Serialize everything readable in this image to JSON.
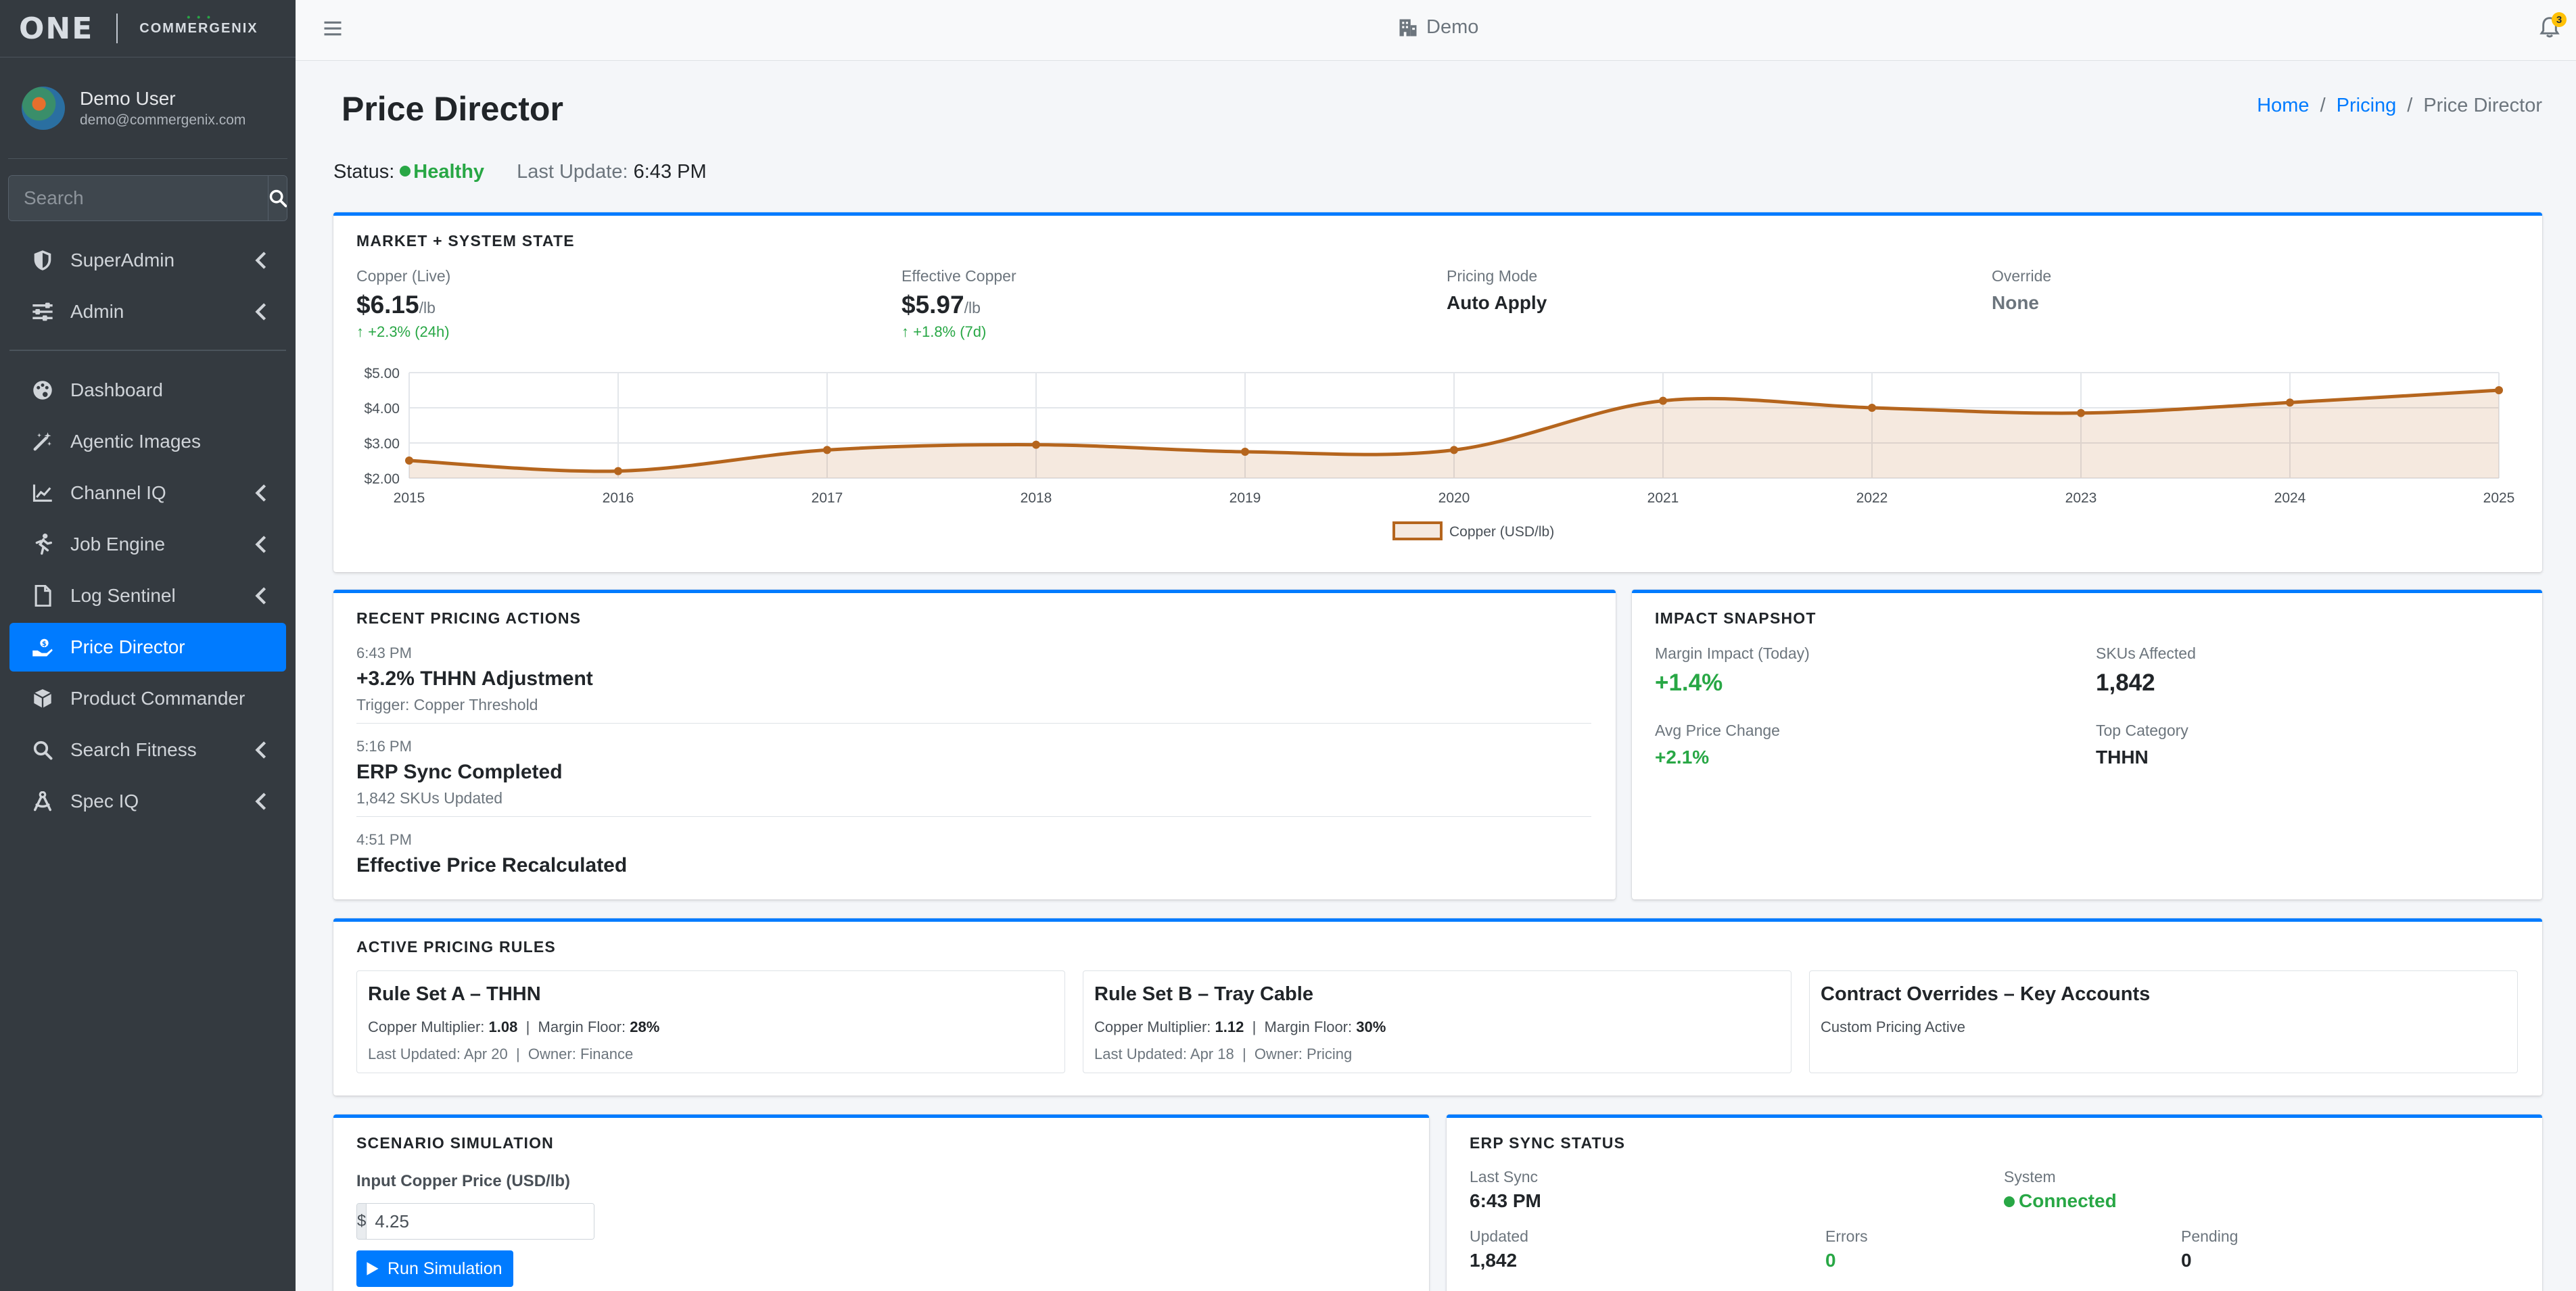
{
  "brand": {
    "logo_text": "ONE",
    "company": "COMMERGENIX"
  },
  "user": {
    "name": "Demo User",
    "email": "demo@commergenix.com"
  },
  "sidebar": {
    "search_placeholder": "Search",
    "items_top": [
      {
        "label": "SuperAdmin",
        "icon": "shield-icon",
        "chevron": true
      },
      {
        "label": "Admin",
        "icon": "sliders-icon",
        "chevron": true
      }
    ],
    "items": [
      {
        "label": "Dashboard",
        "icon": "palette-icon",
        "chevron": false
      },
      {
        "label": "Agentic Images",
        "icon": "magic-wand-icon",
        "chevron": false
      },
      {
        "label": "Channel IQ",
        "icon": "line-chart-icon",
        "chevron": true
      },
      {
        "label": "Job Engine",
        "icon": "runner-icon",
        "chevron": true
      },
      {
        "label": "Log Sentinel",
        "icon": "file-icon",
        "chevron": true
      },
      {
        "label": "Price Director",
        "icon": "hand-holding-dollar-icon",
        "chevron": false,
        "active": true
      },
      {
        "label": "Product Commander",
        "icon": "cube-icon",
        "chevron": false
      },
      {
        "label": "Search Fitness",
        "icon": "search-icon",
        "chevron": true
      },
      {
        "label": "Spec IQ",
        "icon": "drafting-compass-icon",
        "chevron": true
      }
    ]
  },
  "topbar": {
    "workspace": "Demo",
    "notifications": "3"
  },
  "page": {
    "title": "Price Director",
    "breadcrumb": [
      "Home",
      "Pricing",
      "Price Director"
    ],
    "status_label": "Status:",
    "status_value": "Healthy",
    "last_update_label": "Last Update:",
    "last_update_value": "6:43 PM"
  },
  "market": {
    "title": "MARKET + SYSTEM STATE",
    "copper_live_label": "Copper (Live)",
    "copper_live_value": "$6.15",
    "copper_live_unit": "/lb",
    "copper_live_change": "+2.3% (24h)",
    "effective_label": "Effective Copper",
    "effective_value": "$5.97",
    "effective_unit": "/lb",
    "effective_change": "+1.8% (7d)",
    "mode_label": "Pricing Mode",
    "mode_value": "Auto Apply",
    "override_label": "Override",
    "override_value": "None"
  },
  "chart_data": {
    "type": "line",
    "x": [
      "2015",
      "2016",
      "2017",
      "2018",
      "2019",
      "2020",
      "2021",
      "2022",
      "2023",
      "2024",
      "2025"
    ],
    "series": [
      {
        "name": "Copper (USD/lb)",
        "values": [
          2.5,
          2.2,
          2.8,
          2.95,
          2.75,
          2.8,
          4.2,
          4.0,
          3.85,
          4.15,
          4.5
        ],
        "color": "#b5651d"
      }
    ],
    "yticks": [
      "$2.00",
      "$3.00",
      "$4.00",
      "$5.00"
    ],
    "ylim": [
      2,
      5
    ],
    "grid": true,
    "legend": "bottom-center"
  },
  "recent": {
    "title": "RECENT PRICING ACTIONS",
    "items": [
      {
        "time": "6:43 PM",
        "title": "+3.2% THHN Adjustment",
        "sub": "Trigger: Copper Threshold"
      },
      {
        "time": "5:16 PM",
        "title": "ERP Sync Completed",
        "sub": "1,842 SKUs Updated"
      },
      {
        "time": "4:51 PM",
        "title": "Effective Price Recalculated",
        "sub": ""
      }
    ]
  },
  "impact": {
    "title": "IMPACT SNAPSHOT",
    "margin_label": "Margin Impact (Today)",
    "margin_value": "+1.4%",
    "skus_label": "SKUs Affected",
    "skus_value": "1,842",
    "avg_label": "Avg Price Change",
    "avg_value": "+2.1%",
    "category_label": "Top Category",
    "category_value": "THHN"
  },
  "rules": {
    "title": "ACTIVE PRICING RULES",
    "mult_label": "Copper Multiplier:",
    "floor_label": "Margin Floor:",
    "updated_label": "Last Updated:",
    "owner_label": "Owner:",
    "set_a": {
      "name": "Rule Set A – THHN",
      "multiplier": "1.08",
      "floor": "28%",
      "updated": "Apr 20",
      "owner": "Finance"
    },
    "set_b": {
      "name": "Rule Set B – Tray Cable",
      "multiplier": "1.12",
      "floor": "30%",
      "updated": "Apr 18",
      "owner": "Pricing"
    },
    "overrides": {
      "name": "Contract Overrides – Key Accounts",
      "note": "Custom Pricing Active"
    }
  },
  "simulation": {
    "title": "SCENARIO SIMULATION",
    "input_label": "Input Copper Price (USD/lb)",
    "currency": "$",
    "input_value": "4.25",
    "button": "Run Simulation"
  },
  "erp": {
    "title": "ERP SYNC STATUS",
    "last_sync_label": "Last Sync",
    "last_sync_value": "6:43 PM",
    "system_label": "System",
    "system_value": "Connected",
    "updated_label": "Updated",
    "updated_value": "1,842",
    "errors_label": "Errors",
    "errors_value": "0",
    "pending_label": "Pending",
    "pending_value": "0"
  }
}
